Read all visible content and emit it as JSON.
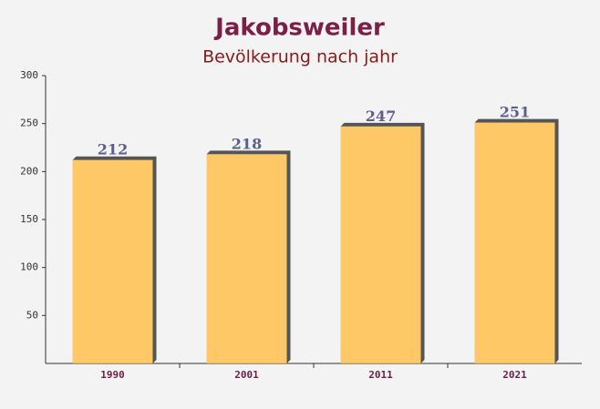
{
  "chart_data": {
    "type": "bar",
    "title": "Jakobsweiler",
    "subtitle": "Bevölkerung nach jahr",
    "categories": [
      "1990",
      "2001",
      "2011",
      "2021"
    ],
    "values": [
      212,
      218,
      247,
      251
    ],
    "color": "#ffc04d",
    "ylim": [
      0,
      300
    ],
    "yticks": [
      50,
      100,
      150,
      200,
      250,
      300
    ],
    "grid": false
  }
}
